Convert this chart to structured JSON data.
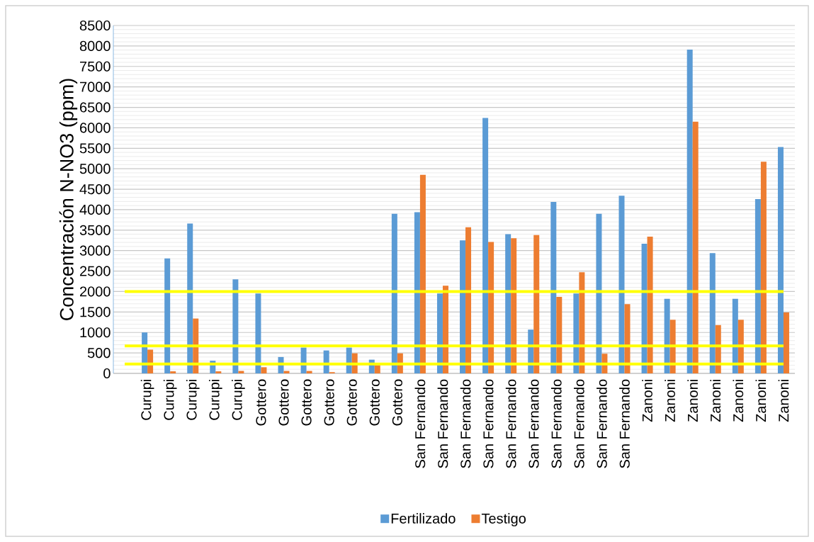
{
  "chart_data": {
    "type": "bar",
    "ylabel": "Concentración N-NO3 (ppm)",
    "categories": [
      null,
      "Curupi",
      "Curupi",
      "Curupi",
      "Curupi",
      "Curupi",
      "Gottero",
      "Gottero",
      "Gottero",
      "Gottero",
      "Gottero",
      "Gottero",
      "Gottero",
      "San Fernando",
      "San Fernando",
      "San Fernando",
      "San Fernando",
      "San Fernando",
      "San Fernando",
      "San Fernando",
      "San Fernando",
      "San Fernando",
      "San Fernando",
      "Zanoni",
      "Zanoni",
      "Zanoni",
      "Zanoni",
      "Zanoni",
      "Zanoni",
      "Zanoni"
    ],
    "series": [
      {
        "name": "Fertilizado",
        "color": "#5b9bd5",
        "values": [
          null,
          1000,
          2810,
          3660,
          310,
          2300,
          1950,
          400,
          630,
          560,
          630,
          335,
          3900,
          3940,
          1950,
          3250,
          6240,
          3400,
          1070,
          4190,
          1950,
          3900,
          4340,
          3170,
          1820,
          7910,
          2940,
          1820,
          4260,
          5530
        ]
      },
      {
        "name": "Testigo",
        "color": "#ed7d31",
        "values": [
          null,
          580,
          50,
          1340,
          50,
          60,
          150,
          60,
          60,
          30,
          490,
          200,
          490,
          4850,
          2140,
          3570,
          3210,
          3300,
          3380,
          1870,
          2470,
          480,
          1690,
          3340,
          1310,
          6150,
          1180,
          1310,
          5170,
          1490
        ]
      }
    ],
    "ylim": [
      0,
      8500
    ],
    "yticks": [
      0,
      500,
      1000,
      1500,
      2000,
      2500,
      3000,
      3500,
      4000,
      4500,
      5000,
      5500,
      6000,
      6500,
      7000,
      7500,
      8000,
      8500
    ],
    "ref_lines": [
      {
        "axis": "y",
        "value": 2000,
        "color": "#ffff00"
      },
      {
        "axis": "y",
        "value": 670,
        "color": "#ffff00"
      },
      {
        "axis": "y",
        "value": 230,
        "color": "#ffff00"
      }
    ],
    "grid": "y",
    "legend": "bottom"
  }
}
